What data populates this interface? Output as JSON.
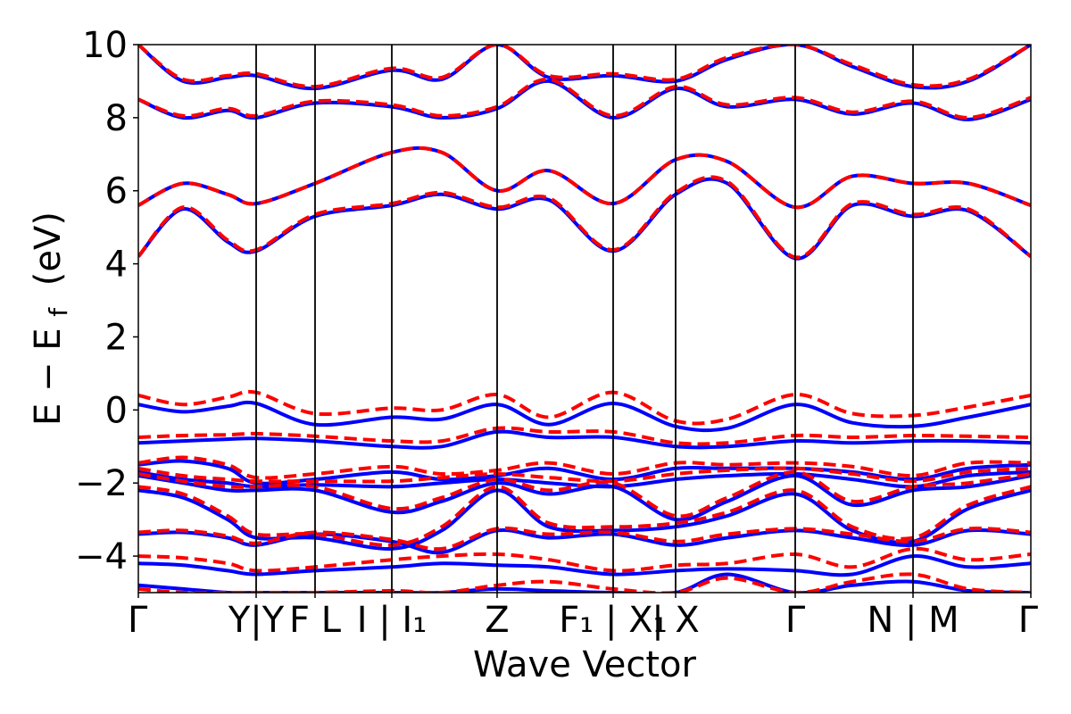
{
  "chart_data": {
    "type": "line",
    "title": "",
    "xlabel": "Wave Vector",
    "ylabel": "E − E",
    "ylabel_subscript": "f",
    "ylabel_unit": "(eV)",
    "ylim": [
      -5,
      10
    ],
    "yticks": [
      -4,
      -2,
      0,
      2,
      4,
      6,
      8,
      10
    ],
    "ytick_labels": [
      "−4",
      "−2",
      "0",
      "2",
      "4",
      "6",
      "8",
      "10"
    ],
    "xlim": [
      0,
      10
    ],
    "high_symmetry_points": [
      {
        "x": 0.0,
        "label": "Γ"
      },
      {
        "x": 1.32,
        "label": "Y|Y"
      },
      {
        "x": 1.98,
        "label": "F L"
      },
      {
        "x": 2.84,
        "label": "I | I₁"
      },
      {
        "x": 4.02,
        "label": "Z"
      },
      {
        "x": 5.32,
        "label": "F₁ | X₁"
      },
      {
        "x": 6.02,
        "label": "| X"
      },
      {
        "x": 7.36,
        "label": "Γ"
      },
      {
        "x": 8.68,
        "label": "N | M"
      },
      {
        "x": 10.0,
        "label": "Γ"
      }
    ],
    "vertical_lines_x": [
      1.32,
      1.98,
      2.84,
      4.02,
      5.32,
      6.02,
      7.36,
      8.68
    ],
    "x": [
      0.0,
      0.5,
      1.0,
      1.32,
      1.98,
      2.84,
      3.4,
      4.02,
      4.6,
      5.32,
      6.02,
      6.6,
      7.36,
      8.0,
      8.68,
      9.3,
      10.0
    ],
    "series": [
      {
        "name": "solid",
        "color": "#0000ff",
        "dashed": false,
        "bands": [
          [
            -4.8,
            -4.9,
            -5.0,
            -5.0,
            -5.0,
            -5.0,
            -5.0,
            -4.9,
            -4.95,
            -5.0,
            -5.0,
            -4.5,
            -5.0,
            -4.8,
            -4.7,
            -4.95,
            -5.0
          ],
          [
            -4.2,
            -4.25,
            -4.4,
            -4.5,
            -4.4,
            -4.3,
            -4.2,
            -4.25,
            -4.3,
            -4.5,
            -4.4,
            -4.35,
            -4.4,
            -4.5,
            -4.0,
            -4.3,
            -4.2
          ],
          [
            -3.4,
            -3.35,
            -3.5,
            -3.7,
            -3.4,
            -3.6,
            -3.9,
            -3.3,
            -3.5,
            -3.4,
            -3.7,
            -3.5,
            -3.3,
            -3.5,
            -3.7,
            -3.3,
            -3.4
          ],
          [
            -2.2,
            -2.4,
            -3.0,
            -3.5,
            -3.5,
            -3.8,
            -3.3,
            -2.2,
            -3.2,
            -3.3,
            -3.2,
            -2.9,
            -2.3,
            -3.3,
            -3.6,
            -2.7,
            -2.2
          ],
          [
            -1.8,
            -2.0,
            -2.2,
            -2.2,
            -2.2,
            -2.8,
            -2.5,
            -2.0,
            -2.3,
            -2.1,
            -3.0,
            -2.5,
            -1.8,
            -2.6,
            -2.2,
            -2.1,
            -1.8
          ],
          [
            -1.7,
            -1.9,
            -2.0,
            -2.1,
            -2.05,
            -2.1,
            -2.0,
            -1.9,
            -2.0,
            -2.1,
            -1.9,
            -1.8,
            -1.75,
            -1.9,
            -2.1,
            -1.8,
            -1.7
          ],
          [
            -1.5,
            -1.4,
            -1.6,
            -2.0,
            -1.9,
            -1.7,
            -1.9,
            -1.8,
            -1.6,
            -1.9,
            -1.6,
            -1.6,
            -1.6,
            -1.7,
            -1.9,
            -1.6,
            -1.5
          ],
          [
            -0.9,
            -0.85,
            -0.8,
            -0.78,
            -0.85,
            -1.0,
            -1.0,
            -0.6,
            -0.75,
            -0.75,
            -1.0,
            -1.0,
            -0.85,
            -0.9,
            -0.85,
            -0.85,
            -0.9
          ],
          [
            0.15,
            -0.05,
            0.1,
            0.18,
            -0.4,
            -0.2,
            -0.25,
            0.15,
            -0.4,
            0.18,
            -0.45,
            -0.5,
            0.15,
            -0.35,
            -0.45,
            -0.2,
            0.15
          ],
          [
            4.2,
            5.5,
            4.6,
            4.35,
            5.3,
            5.6,
            5.9,
            5.5,
            5.75,
            4.35,
            5.9,
            6.2,
            4.15,
            5.6,
            5.3,
            5.45,
            4.2
          ],
          [
            5.6,
            6.2,
            5.9,
            5.65,
            6.2,
            7.05,
            7.05,
            6.0,
            6.55,
            5.65,
            6.85,
            6.8,
            5.55,
            6.4,
            6.2,
            6.2,
            5.6
          ],
          [
            8.5,
            8.0,
            8.2,
            8.0,
            8.4,
            8.3,
            8.0,
            8.25,
            9.0,
            8.0,
            8.8,
            8.3,
            8.5,
            8.1,
            8.4,
            7.95,
            8.5
          ],
          [
            10.0,
            9.0,
            9.1,
            9.15,
            8.8,
            9.3,
            9.05,
            10.0,
            9.1,
            9.15,
            9.0,
            9.6,
            10.0,
            9.4,
            8.85,
            9.0,
            10.0
          ]
        ]
      },
      {
        "name": "dashed",
        "color": "#ff0000",
        "dashed": true,
        "bands": [
          [
            -4.9,
            -5.0,
            -5.0,
            -5.0,
            -5.0,
            -4.95,
            -5.0,
            -4.8,
            -4.7,
            -4.9,
            -5.0,
            -4.6,
            -5.0,
            -4.7,
            -4.5,
            -4.9,
            -5.0
          ],
          [
            -4.0,
            -4.05,
            -4.2,
            -4.4,
            -4.3,
            -4.1,
            -4.0,
            -3.95,
            -4.1,
            -4.4,
            -4.25,
            -4.2,
            -3.95,
            -4.3,
            -3.8,
            -4.1,
            -3.95
          ],
          [
            -3.35,
            -3.3,
            -3.45,
            -3.65,
            -3.35,
            -3.55,
            -3.8,
            -3.25,
            -3.4,
            -3.35,
            -3.6,
            -3.4,
            -3.25,
            -3.4,
            -3.6,
            -3.25,
            -3.35
          ],
          [
            -2.1,
            -2.3,
            -2.9,
            -3.4,
            -3.4,
            -3.7,
            -3.2,
            -2.1,
            -3.1,
            -3.2,
            -3.1,
            -2.8,
            -2.2,
            -3.2,
            -3.5,
            -2.6,
            -2.1
          ],
          [
            -1.75,
            -1.95,
            -2.1,
            -2.1,
            -2.1,
            -2.7,
            -2.4,
            -1.9,
            -2.2,
            -2.0,
            -2.9,
            -2.4,
            -1.7,
            -2.5,
            -2.1,
            -2.0,
            -1.75
          ],
          [
            -1.6,
            -1.8,
            -1.9,
            -1.95,
            -1.95,
            -1.95,
            -1.85,
            -1.75,
            -1.85,
            -1.95,
            -1.75,
            -1.65,
            -1.6,
            -1.75,
            -1.95,
            -1.7,
            -1.6
          ],
          [
            -1.45,
            -1.3,
            -1.5,
            -1.85,
            -1.75,
            -1.55,
            -1.75,
            -1.65,
            -1.45,
            -1.75,
            -1.45,
            -1.5,
            -1.45,
            -1.55,
            -1.8,
            -1.45,
            -1.45
          ],
          [
            -0.75,
            -0.7,
            -0.68,
            -0.65,
            -0.72,
            -0.85,
            -0.85,
            -0.5,
            -0.6,
            -0.6,
            -0.9,
            -0.9,
            -0.7,
            -0.75,
            -0.7,
            -0.72,
            -0.75
          ],
          [
            0.4,
            0.15,
            0.35,
            0.48,
            -0.1,
            0.05,
            0.0,
            0.42,
            -0.2,
            0.48,
            -0.3,
            -0.25,
            0.42,
            -0.1,
            -0.15,
            0.08,
            0.4
          ],
          [
            4.2,
            5.55,
            4.65,
            4.38,
            5.35,
            5.65,
            5.95,
            5.55,
            5.8,
            4.38,
            5.95,
            6.25,
            4.18,
            5.65,
            5.35,
            5.5,
            4.2
          ],
          [
            5.6,
            6.2,
            5.9,
            5.65,
            6.2,
            7.05,
            7.05,
            6.0,
            6.55,
            5.65,
            6.85,
            6.8,
            5.55,
            6.4,
            6.2,
            6.2,
            5.6
          ],
          [
            8.5,
            8.05,
            8.25,
            8.05,
            8.45,
            8.35,
            8.05,
            8.3,
            9.05,
            8.05,
            8.85,
            8.35,
            8.55,
            8.15,
            8.45,
            8.0,
            8.55
          ],
          [
            10.0,
            9.05,
            9.15,
            9.2,
            8.85,
            9.35,
            9.1,
            10.0,
            9.15,
            9.2,
            9.05,
            9.65,
            10.0,
            9.45,
            8.9,
            9.05,
            10.0
          ]
        ]
      }
    ]
  }
}
